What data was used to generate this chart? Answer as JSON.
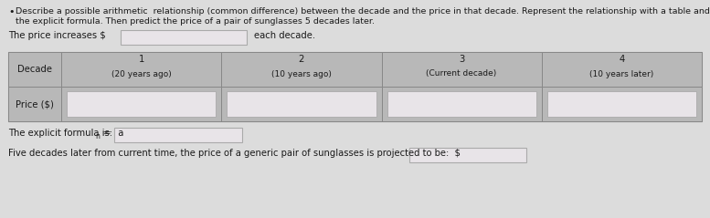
{
  "bullet_text_line1": "Describe a possible arithmetic  relationship (common difference) between the decade and the price in that decade. Represent the relationship with a table and",
  "bullet_text_line2": "the explicit formula. Then predict the price of a pair of sunglasses 5 decades later.",
  "price_increases_label": "The price increases $",
  "each_decade_label": "each decade.",
  "decade_label": "Decade",
  "price_label": "Price ($)",
  "col_numbers": [
    "1",
    "2",
    "3",
    "4"
  ],
  "col_subtitles": [
    "(20 years ago)",
    "(10 years ago)",
    "(Current decade)",
    "(10 years later)"
  ],
  "explicit_label": "The explicit formula is:  a",
  "explicit_subscript": "n",
  "explicit_suffix": " =",
  "five_decades_label": "Five decades later from current time, the price of a generic pair of sunglasses is projected to be:  $",
  "bg_color": "#dcdcdc",
  "table_outer_bg": "#b8b8b8",
  "table_cell_bg": "#d0ccd0",
  "input_box_color": "#e8e4e8",
  "text_color": "#1a1a1a"
}
